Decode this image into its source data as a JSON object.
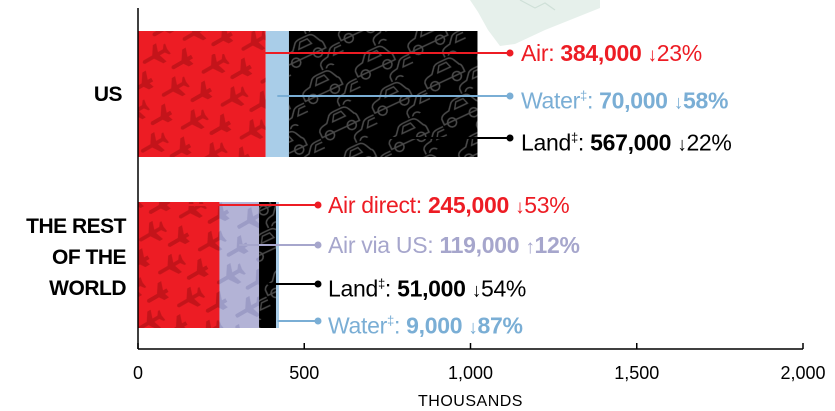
{
  "chart_data": {
    "type": "bar",
    "orientation": "horizontal",
    "stacked": true,
    "xlabel": "THOUSANDS",
    "xlim": [
      0,
      2000
    ],
    "xticks": [
      0,
      500,
      1000,
      1500,
      2000
    ],
    "tick_labels": [
      "0",
      "500",
      "1,000",
      "1,500",
      "2,000"
    ],
    "categories": [
      {
        "label_lines": [
          "US"
        ],
        "segments": [
          {
            "name": "Air",
            "value": 384000,
            "color": "#ed1c24",
            "pattern": "plane-icon"
          },
          {
            "name": "Water",
            "value": 70000,
            "color": "#a9cde8",
            "pattern": "none"
          },
          {
            "name": "Land",
            "value": 567000,
            "color": "#000000",
            "pattern": "car-icon"
          }
        ],
        "annotations": [
          {
            "label": "Air",
            "sup": "",
            "value_text": "384,000",
            "arrow": "↓",
            "change": "23%",
            "color": "#ed1c24",
            "change_color": "#ed1c24",
            "value": 384000
          },
          {
            "label": "Water",
            "sup": "‡",
            "value_text": "70,000",
            "arrow": "↓",
            "change": "58%",
            "color": "#7aaed5",
            "change_color": "#7aaed5",
            "value": 70000
          },
          {
            "label": "Land",
            "sup": "‡",
            "value_text": "567,000",
            "arrow": "↓",
            "change": "22%",
            "color": "#000000",
            "change_color": "#000000",
            "value": 567000
          }
        ]
      },
      {
        "label_lines": [
          "THE REST",
          "OF THE",
          "WORLD"
        ],
        "segments": [
          {
            "name": "Air direct",
            "value": 245000,
            "color": "#ed1c24",
            "pattern": "plane-icon"
          },
          {
            "name": "Air via US",
            "value": 119000,
            "color": "#b3b3d6",
            "pattern": "plane-icon"
          },
          {
            "name": "Land",
            "value": 51000,
            "color": "#000000",
            "pattern": "car-icon"
          },
          {
            "name": "Water",
            "value": 9000,
            "color": "#a9cde8",
            "pattern": "none"
          }
        ],
        "annotations": [
          {
            "label": "Air direct",
            "sup": "",
            "value_text": "245,000",
            "arrow": "↓",
            "change": "53%",
            "color": "#ed1c24",
            "change_color": "#ed1c24",
            "value": 245000
          },
          {
            "label": "Air via US",
            "sup": "",
            "value_text": "119,000",
            "arrow": "↑",
            "change": "12%",
            "color": "#a6a6cc",
            "change_color": "#a6a6cc",
            "value": 119000
          },
          {
            "label": "Land",
            "sup": "‡",
            "value_text": "51,000",
            "arrow": "↓",
            "change": "54%",
            "color": "#000000",
            "change_color": "#000000",
            "value": 51000
          },
          {
            "label": "Water",
            "sup": "‡",
            "value_text": "9,000",
            "arrow": "↓",
            "change": "87%",
            "color": "#7aaed5",
            "change_color": "#7aaed5",
            "value": 9000
          }
        ]
      }
    ],
    "background": {
      "icon": "map-outline-icon",
      "color": "#e4efea"
    }
  }
}
